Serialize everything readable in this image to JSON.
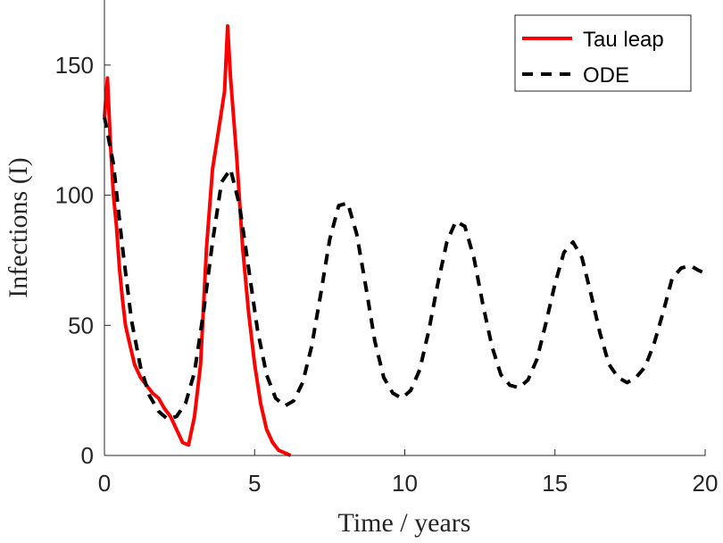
{
  "chart_data": {
    "type": "line",
    "xlabel": "Time / years",
    "ylabel": "Infections (I)",
    "xlim": [
      0,
      20
    ],
    "ylim": [
      0,
      175
    ],
    "xticks": [
      0,
      5,
      10,
      15,
      20
    ],
    "yticks": [
      0,
      50,
      100,
      150
    ],
    "grid": false,
    "legend_position": "top-right",
    "series": [
      {
        "name": "Tau leap",
        "style": "solid",
        "color": "#ff0000",
        "x": [
          0,
          0.1,
          0.2,
          0.3,
          0.4,
          0.5,
          0.6,
          0.7,
          0.8,
          0.9,
          1.0,
          1.2,
          1.4,
          1.6,
          1.8,
          2.0,
          2.2,
          2.4,
          2.6,
          2.8,
          3.0,
          3.2,
          3.4,
          3.6,
          3.8,
          4.0,
          4.1,
          4.2,
          4.4,
          4.6,
          4.8,
          5.0,
          5.2,
          5.4,
          5.6,
          5.8,
          6.0,
          6.2
        ],
        "y": [
          130,
          145,
          120,
          100,
          88,
          72,
          60,
          50,
          45,
          40,
          35,
          30,
          27,
          24,
          22,
          18,
          15,
          10,
          5,
          4,
          15,
          35,
          80,
          110,
          125,
          140,
          165,
          145,
          115,
          80,
          55,
          35,
          20,
          10,
          5,
          2,
          1,
          0
        ]
      },
      {
        "name": "ODE",
        "style": "dashed",
        "color": "#000000",
        "x": [
          0,
          0.3,
          0.6,
          0.9,
          1.2,
          1.5,
          1.8,
          2.1,
          2.4,
          2.7,
          3.0,
          3.3,
          3.6,
          3.9,
          4.2,
          4.5,
          4.8,
          5.1,
          5.4,
          5.7,
          6.0,
          6.3,
          6.6,
          6.9,
          7.2,
          7.5,
          7.8,
          8.1,
          8.4,
          8.7,
          9.0,
          9.3,
          9.6,
          9.9,
          10.2,
          10.5,
          10.8,
          11.1,
          11.4,
          11.7,
          12.0,
          12.3,
          12.6,
          12.9,
          13.2,
          13.5,
          13.8,
          14.1,
          14.4,
          14.7,
          15.0,
          15.3,
          15.6,
          15.9,
          16.2,
          16.5,
          16.8,
          17.1,
          17.4,
          17.7,
          18.0,
          18.3,
          18.6,
          18.9,
          19.2,
          19.5,
          19.8,
          20.0
        ],
        "y": [
          130,
          112,
          80,
          52,
          34,
          23,
          17,
          14,
          15,
          20,
          32,
          55,
          82,
          105,
          110,
          96,
          72,
          48,
          31,
          22,
          19,
          21,
          28,
          42,
          62,
          83,
          96,
          97,
          85,
          65,
          44,
          30,
          24,
          22,
          25,
          33,
          48,
          66,
          82,
          90,
          88,
          76,
          58,
          42,
          31,
          27,
          26,
          29,
          37,
          51,
          66,
          78,
          82,
          76,
          62,
          47,
          35,
          30,
          28,
          30,
          34,
          43,
          55,
          68,
          72,
          73,
          71,
          70
        ]
      }
    ]
  }
}
